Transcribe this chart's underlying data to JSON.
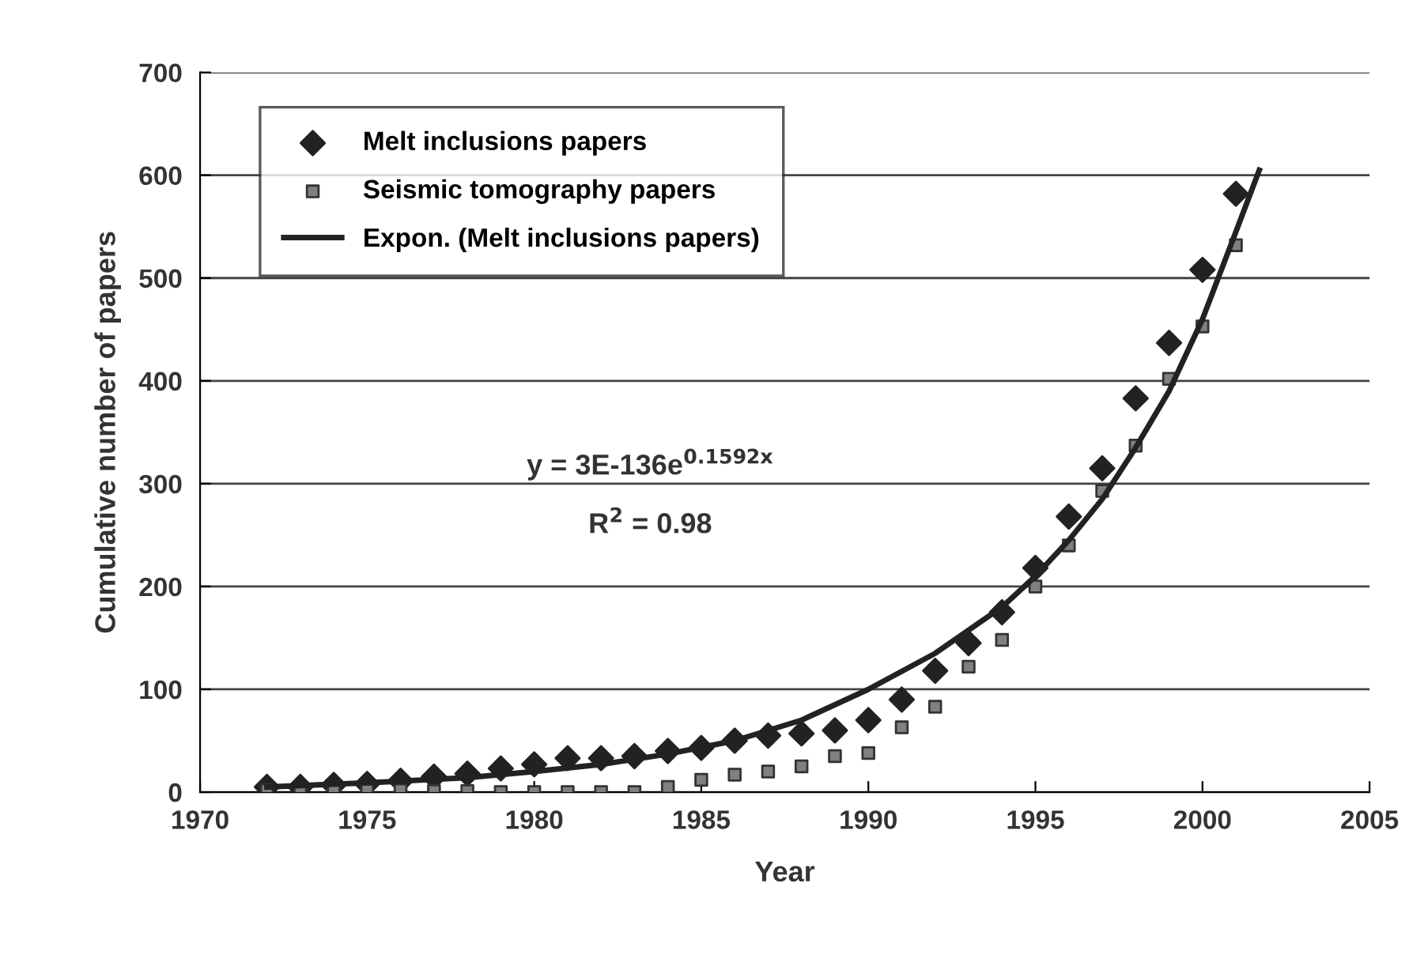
{
  "chart_data": {
    "type": "scatter",
    "xlabel": "Year",
    "ylabel": "Cumulative number of papers",
    "xlim": [
      1970,
      2005
    ],
    "xticks": [
      1970,
      1975,
      1980,
      1985,
      1990,
      1995,
      2000,
      2005
    ],
    "ylim": [
      0,
      700
    ],
    "yticks": [
      0,
      100,
      200,
      300,
      400,
      500,
      600,
      700
    ],
    "grid": "y",
    "legend": "top left",
    "series": [
      {
        "name": "Melt inclusions papers",
        "marker": "diamond",
        "color": "#222222",
        "x": [
          1972,
          1973,
          1974,
          1975,
          1976,
          1977,
          1978,
          1979,
          1980,
          1981,
          1982,
          1983,
          1984,
          1985,
          1986,
          1987,
          1988,
          1989,
          1990,
          1991,
          1992,
          1993,
          1994,
          1995,
          1996,
          1997,
          1998,
          1999,
          2000,
          2001
        ],
        "values": [
          5,
          5,
          7,
          8,
          11,
          15,
          18,
          23,
          27,
          33,
          33,
          35,
          40,
          43,
          50,
          55,
          57,
          60,
          70,
          90,
          118,
          145,
          175,
          218,
          268,
          315,
          383,
          437,
          508,
          582
        ]
      },
      {
        "name": "Seismic tomography papers",
        "marker": "square",
        "color": "#808080",
        "x": [
          1972,
          1973,
          1974,
          1975,
          1976,
          1977,
          1978,
          1979,
          1980,
          1981,
          1982,
          1983,
          1984,
          1985,
          1986,
          1987,
          1988,
          1989,
          1990,
          1991,
          1992,
          1993,
          1994,
          1995,
          1996,
          1997,
          1998,
          1999,
          2000,
          2001
        ],
        "values": [
          2,
          2,
          2,
          2,
          2,
          1,
          1,
          0,
          0,
          0,
          0,
          0,
          5,
          12,
          17,
          20,
          25,
          35,
          38,
          63,
          83,
          122,
          148,
          200,
          240,
          293,
          337,
          402,
          453,
          532
        ]
      },
      {
        "name": "Expon. (Melt inclusions papers)",
        "type": "line",
        "marker": "none",
        "line_style": "solid",
        "color": "#222222",
        "x": [
          1972,
          1975,
          1978,
          1980,
          1982,
          1984,
          1986,
          1988,
          1990,
          1992,
          1994,
          1995,
          1996,
          1997,
          1998,
          1999,
          2000,
          2001,
          2001.7
        ],
        "values": [
          5,
          9,
          14,
          20,
          27,
          37,
          50,
          70,
          100,
          135,
          180,
          210,
          245,
          285,
          335,
          390,
          460,
          545,
          605
        ]
      }
    ],
    "annotations": [
      "y = 3E-136e$^{0.1592x}$",
      "R$^{2}$ = 0.98"
    ]
  }
}
